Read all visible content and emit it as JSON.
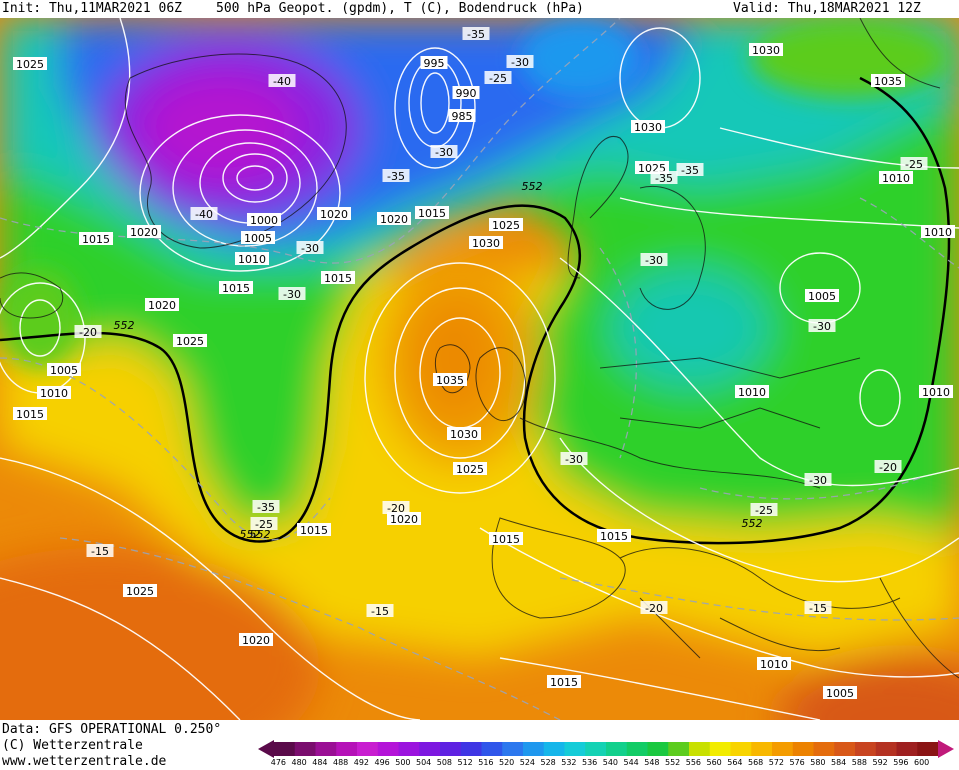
{
  "header": {
    "init": "Init: Thu,11MAR2021 06Z",
    "title": "500 hPa Geopot. (gpdm), T (C), Bodendruck (hPa)",
    "valid": "Valid: Thu,18MAR2021 12Z"
  },
  "footer": {
    "data_source": "Data: GFS OPERATIONAL 0.250°",
    "copyright": "(C) Wetterzentrale",
    "website": "www.wetterzentrale.de"
  },
  "legend": {
    "ticks": [
      "476",
      "480",
      "484",
      "488",
      "492",
      "496",
      "500",
      "504",
      "508",
      "512",
      "516",
      "520",
      "524",
      "528",
      "532",
      "536",
      "540",
      "544",
      "548",
      "552",
      "556",
      "560",
      "564",
      "568",
      "572",
      "576",
      "580",
      "584",
      "588",
      "592",
      "596",
      "600"
    ],
    "colors": [
      "#5a0a4a",
      "#7a0d6e",
      "#9a0f95",
      "#b512b8",
      "#c81ed0",
      "#b414d8",
      "#9b14de",
      "#7d18e0",
      "#5f22e2",
      "#3f36e4",
      "#2f56ea",
      "#2c78ee",
      "#1f98ee",
      "#16b6ea",
      "#15ccd8",
      "#14d2b4",
      "#12d08c",
      "#12cc66",
      "#1ac840",
      "#5ccc1e",
      "#c8e000",
      "#f2ec00",
      "#f8d400",
      "#f8b800",
      "#f49c00",
      "#ec8200",
      "#e46c0c",
      "#d85818",
      "#c84420",
      "#b43222",
      "#9e2020",
      "#8a1414"
    ]
  },
  "map": {
    "isobars": [
      "1025",
      "1020",
      "1015",
      "1020",
      "1005",
      "1010",
      "1015",
      "1025",
      "1000",
      "1005",
      "1010",
      "1015",
      "1020",
      "1020",
      "1015",
      "995",
      "990",
      "985",
      "1025",
      "1030",
      "1015",
      "1030",
      "1025",
      "1035",
      "1010",
      "1005",
      "1010",
      "1030",
      "1025",
      "1020",
      "1015",
      "1015",
      "1015",
      "1025",
      "1020",
      "1015",
      "1010",
      "1005",
      "1030",
      "1035",
      "1010",
      "1010"
    ],
    "temperatures": [
      "-35",
      "-30",
      "-25",
      "-40",
      "-40",
      "-30",
      "-35",
      "-30",
      "-30",
      "-20",
      "-30",
      "-35",
      "-25",
      "-35",
      "-30",
      "-30",
      "-25",
      "-20",
      "-30",
      "-35",
      "-25",
      "-20",
      "-15",
      "-15",
      "-20",
      "-15"
    ],
    "geopotential": [
      "552",
      "552",
      "552",
      "552",
      "552"
    ]
  }
}
